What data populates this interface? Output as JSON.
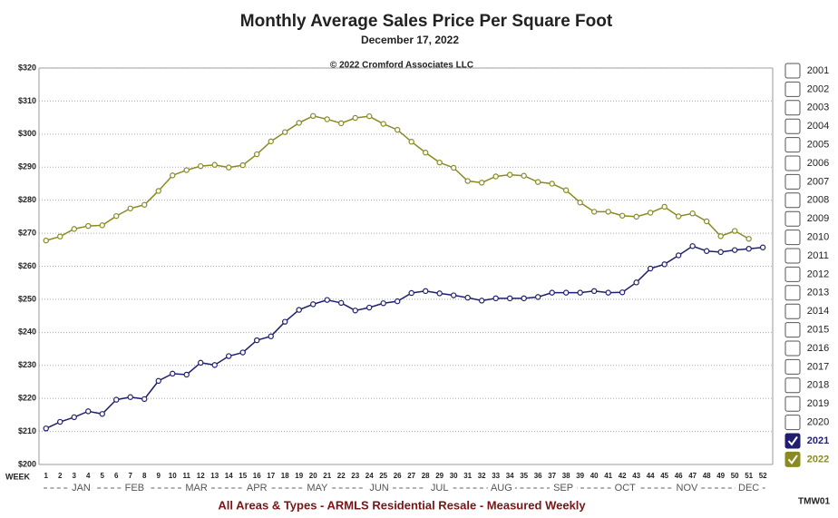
{
  "chart_data": {
    "type": "line",
    "title": "Monthly Average Sales Price Per Square Foot",
    "subtitle": "December 17, 2022",
    "annotation": "© 2022 Cromford Associates LLC",
    "x_label": "WEEK",
    "footer": "All Areas & Types - ARMLS Residential Resale - Measured Weekly",
    "code": "TMW01",
    "months": [
      "JAN",
      "FEB",
      "MAR",
      "APR",
      "MAY",
      "JUN",
      "JUL",
      "AUG",
      "SEP",
      "OCT",
      "NOV",
      "DEC"
    ],
    "x": [
      1,
      2,
      3,
      4,
      5,
      6,
      7,
      8,
      9,
      10,
      11,
      12,
      13,
      14,
      15,
      16,
      17,
      18,
      19,
      20,
      21,
      22,
      23,
      24,
      25,
      26,
      27,
      28,
      29,
      30,
      31,
      32,
      33,
      34,
      35,
      36,
      37,
      38,
      39,
      40,
      41,
      42,
      43,
      44,
      45,
      46,
      47,
      48,
      49,
      50,
      51,
      52
    ],
    "xlim": [
      0.5,
      52.7
    ],
    "ylim": [
      200,
      320
    ],
    "yticks": [
      {
        "value": 200,
        "label": "$200"
      },
      {
        "value": 210,
        "label": "$210"
      },
      {
        "value": 220,
        "label": "$220"
      },
      {
        "value": 230,
        "label": "$230"
      },
      {
        "value": 240,
        "label": "$240"
      },
      {
        "value": 250,
        "label": "$250"
      },
      {
        "value": 260,
        "label": "$260"
      },
      {
        "value": 270,
        "label": "$270"
      },
      {
        "value": 280,
        "label": "$280"
      },
      {
        "value": 290,
        "label": "$290"
      },
      {
        "value": 300,
        "label": "$300"
      },
      {
        "value": 310,
        "label": "$310"
      },
      {
        "value": 320,
        "label": "$320"
      }
    ],
    "grid": true,
    "legend_position": "right",
    "legend_years": [
      "2001",
      "2002",
      "2003",
      "2004",
      "2005",
      "2006",
      "2007",
      "2008",
      "2009",
      "2010",
      "2011",
      "2012",
      "2013",
      "2014",
      "2015",
      "2016",
      "2017",
      "2018",
      "2019",
      "2020"
    ],
    "series": [
      {
        "name": "2021",
        "color": "#1f1f6e",
        "values": [
          210.9,
          212.9,
          214.3,
          216.1,
          215.3,
          219.6,
          220.4,
          219.8,
          225.3,
          227.5,
          227.2,
          230.8,
          230.1,
          232.8,
          233.9,
          237.6,
          238.8,
          243.2,
          246.8,
          248.5,
          249.8,
          248.9,
          246.6,
          247.5,
          248.8,
          249.4,
          251.9,
          252.5,
          251.8,
          251.2,
          250.5,
          249.6,
          250.3,
          250.3,
          250.3,
          250.7,
          252.0,
          252.0,
          252.0,
          252.5,
          252.0,
          252.1,
          255.1,
          259.3,
          260.6,
          263.3,
          266.1,
          264.6,
          264.3,
          264.9,
          265.3,
          265.7
        ]
      },
      {
        "name": "2022",
        "color": "#8a8a22",
        "values": [
          267.8,
          269.0,
          271.3,
          272.2,
          272.4,
          275.2,
          277.5,
          278.6,
          282.8,
          287.5,
          289.1,
          290.3,
          290.7,
          289.9,
          290.6,
          293.9,
          297.8,
          300.6,
          303.4,
          305.5,
          304.5,
          303.3,
          304.9,
          305.4,
          303.1,
          301.3,
          297.7,
          294.4,
          291.4,
          289.8,
          285.8,
          285.3,
          287.2,
          287.7,
          287.4,
          285.5,
          285.0,
          283.0,
          279.3,
          276.5,
          276.5,
          275.3,
          275.0,
          276.2,
          278.0,
          275.1,
          276.0,
          273.6,
          269.1,
          270.7,
          268.3,
          null
        ]
      }
    ]
  }
}
